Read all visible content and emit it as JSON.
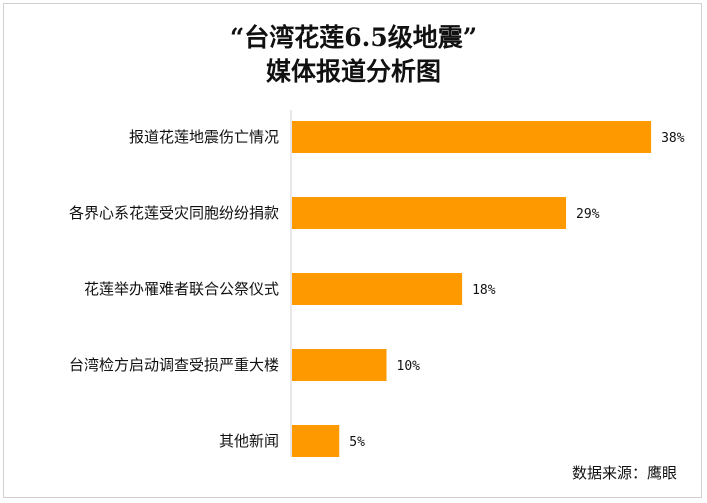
{
  "chart_data": {
    "type": "bar",
    "orientation": "horizontal",
    "title_line1": "“台湾花莲6.5级地震”",
    "title_line2": "媒体报道分析图",
    "categories": [
      "报道花莲地震伤亡情况",
      "各界心系花莲受灾同胞纷纷捐款",
      "花莲举办罹难者联合公祭仪式",
      "台湾检方启动调查受损严重大楼",
      "其他新闻"
    ],
    "values": [
      38,
      29,
      18,
      10,
      5
    ],
    "value_labels": [
      "38%",
      "29%",
      "18%",
      "10%",
      "5%"
    ],
    "unit": "%",
    "xlim": [
      0,
      40
    ],
    "grid": false,
    "legend": "none",
    "bar_color": "#FF9900",
    "source": "数据来源：鹰眼"
  }
}
